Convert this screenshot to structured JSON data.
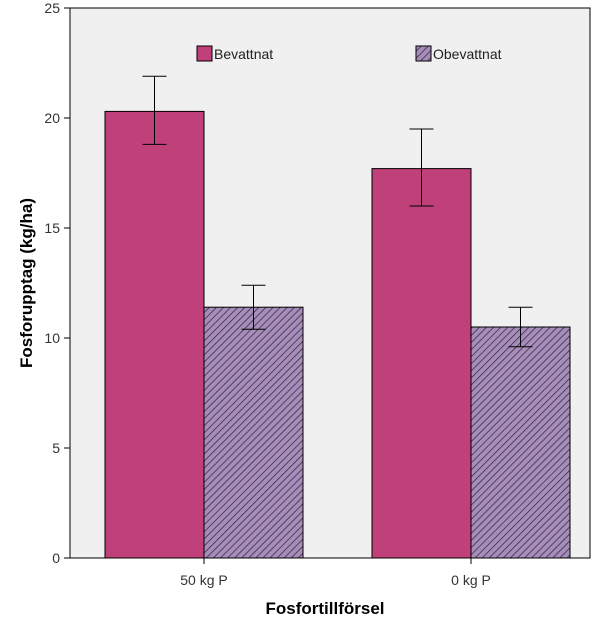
{
  "chart_data": {
    "type": "bar",
    "xlabel": "Fosfortillförsel",
    "ylabel": "Fosforupptag (kg/ha)",
    "ylim": [
      0,
      25
    ],
    "yticks": [
      0,
      5,
      10,
      15,
      20,
      25
    ],
    "categories": [
      "50 kg P",
      "0 kg P"
    ],
    "series": [
      {
        "name": "Bevattnat",
        "values": [
          20.3,
          17.7
        ],
        "err_low": [
          18.8,
          16.0
        ],
        "err_high": [
          21.9,
          19.5
        ],
        "color": "#c0407a",
        "pattern": "solid"
      },
      {
        "name": "Obevattnat",
        "values": [
          11.4,
          10.5
        ],
        "err_low": [
          10.4,
          9.6
        ],
        "err_high": [
          12.4,
          11.4
        ],
        "color": "#a78db9",
        "pattern": "hatch"
      }
    ],
    "error_bars": true,
    "grid": false,
    "legend_position": "top-inside",
    "plot_background": "#f0f0f0"
  }
}
